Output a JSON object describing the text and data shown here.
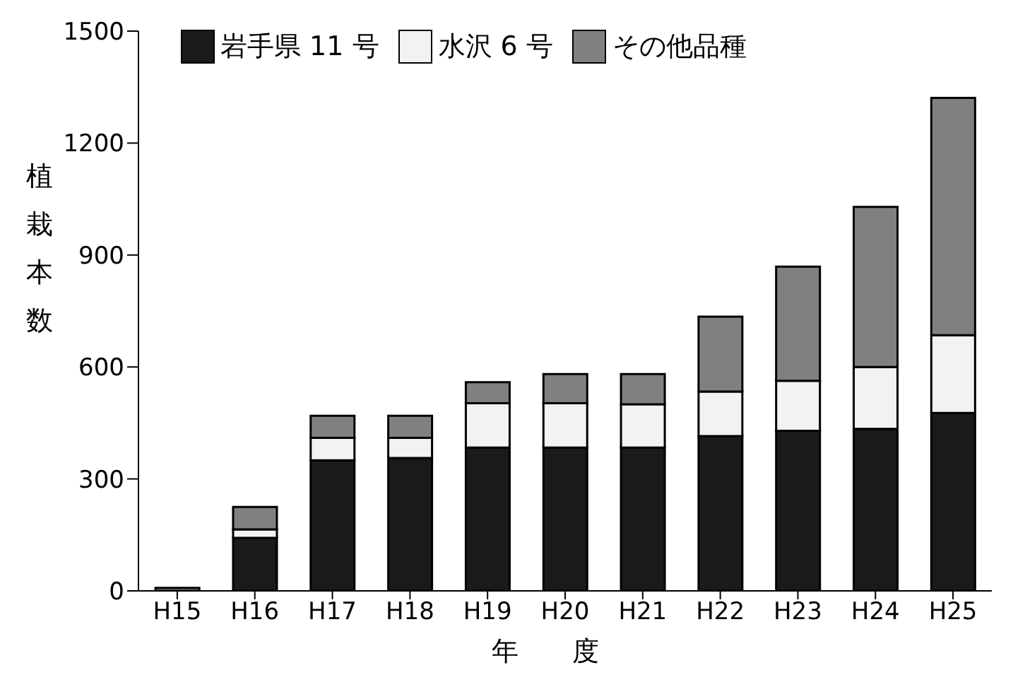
{
  "chart_data": {
    "type": "bar",
    "stacked": true,
    "xlabel": "年　　度",
    "ylabel": "植栽本数",
    "categories": [
      "H15",
      "H16",
      "H17",
      "H18",
      "H19",
      "H20",
      "H21",
      "H22",
      "H23",
      "H24",
      "H25"
    ],
    "series": [
      {
        "name": "岩手県 11 号",
        "color": "#1a1a1a",
        "values": [
          0,
          142,
          350,
          356,
          384,
          384,
          384,
          415,
          429,
          434,
          477
        ]
      },
      {
        "name": "水沢 6 号",
        "color": "#f2f2f2",
        "values": [
          0,
          23,
          60,
          54,
          119,
          119,
          116,
          119,
          134,
          166,
          208
        ]
      },
      {
        "name": "その他品種",
        "color": "#808080",
        "values": [
          8,
          60,
          59,
          59,
          56,
          78,
          81,
          201,
          306,
          429,
          636
        ]
      }
    ],
    "ylim": [
      0,
      1500
    ],
    "yticks": [
      0,
      300,
      600,
      900,
      1200,
      1500
    ],
    "grid": false,
    "legend": "top"
  }
}
